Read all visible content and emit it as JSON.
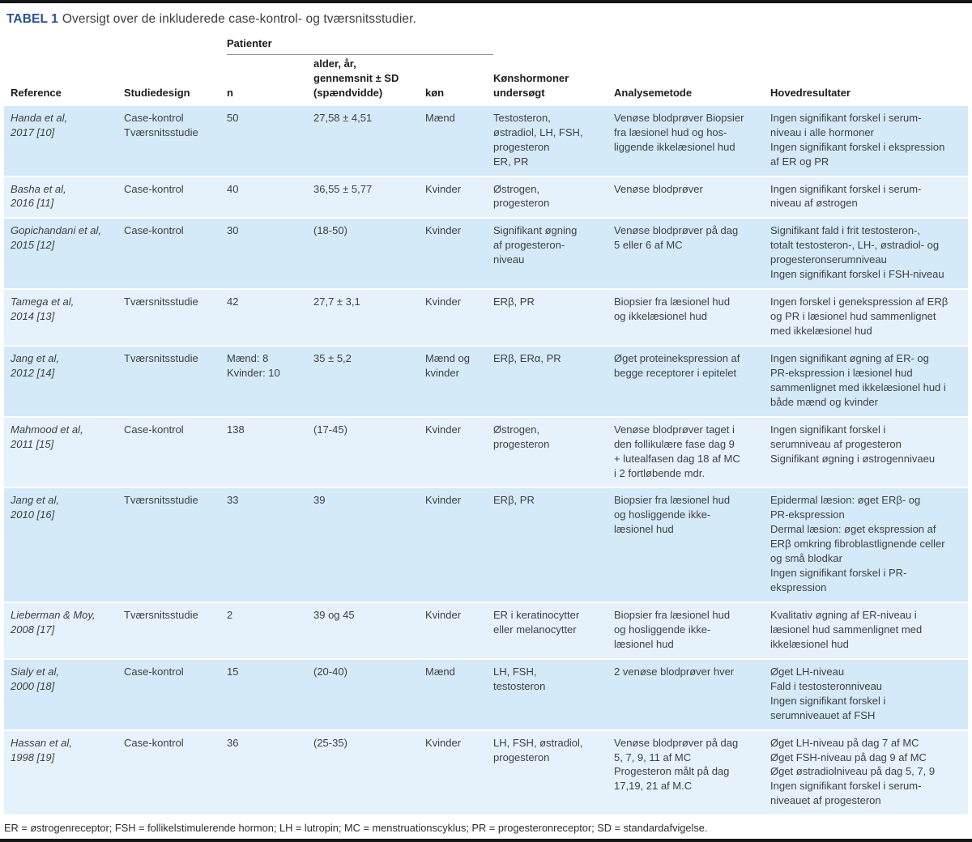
{
  "page": {
    "title_label": "TABEL 1",
    "title_text": "Oversigt over de inkluderede case-kontrol- og tværsnitsstudier.",
    "footnote": "ER = østrogenreceptor; FSH = follikelstimulerende hormon; LH = lutropin; MC = menstruationscyklus; PR = progesteronreceptor; SD = standardafvigelse.",
    "colors": {
      "accent_blue": "#24519b",
      "row_band_dark": "#d5eaf8",
      "row_band_light": "#e5f2fb",
      "rule_black": "#161616"
    }
  },
  "table": {
    "group_header": "Patienter",
    "columns": {
      "reference": "Reference",
      "design": "Studiedesign",
      "n": "n",
      "age": "alder, år,\ngennemsnit ± SD\n(spændvidde)",
      "sex": "køn",
      "hormones": "Kønshormoner\nundersøgt",
      "method": "Analysemetode",
      "results": "Hovedresultater"
    },
    "rows": [
      {
        "reference": "Handa et al,\n2017 [10]",
        "design": "Case-kontrol\nTværsnitsstudie",
        "n": "50",
        "age": "27,58 ± 4,51",
        "sex": "Mænd",
        "hormones": "Testosteron,\nøstradiol, LH, FSH,\nprogesteron\nER, PR",
        "method": "Venøse blodprøver Biopsier\nfra læsionel hud og hos-\nliggende ikkelæsionel hud",
        "results": "Ingen signifikant forskel i serum-\nniveau i alle hormoner\nIngen signifikant forskel i ekspression\naf ER og PR"
      },
      {
        "reference": "Basha et al,\n2016 [11]",
        "design": "Case-kontrol",
        "n": "40",
        "age": "36,55 ± 5,77",
        "sex": "Kvinder",
        "hormones": "Østrogen,\nprogesteron",
        "method": "Venøse blodprøver",
        "results": "Ingen signifikant forskel i serum-\nniveau af østrogen"
      },
      {
        "reference": "Gopichandani et al,\n2015 [12]",
        "design": "Case-kontrol",
        "n": "30",
        "age": "(18-50)",
        "sex": "Kvinder",
        "hormones": "Signifikant øgning\naf progesteron-\nniveau",
        "method": "Venøse blodprøver på dag\n5 eller 6 af MC",
        "results": "Signifikant fald i frit testosteron-,\ntotalt testosteron-, LH-, østradiol- og\nprogesteronserumniveau\nIngen signifikant forskel i FSH-niveau"
      },
      {
        "reference": "Tamega et al,\n2014 [13]",
        "design": "Tværsnitsstudie",
        "n": "42",
        "age": "27,7 ± 3,1",
        "sex": "Kvinder",
        "hormones": "ERβ, PR",
        "method": "Biopsier fra læsionel hud\nog ikkelæsionel hud",
        "results": "Ingen forskel i genekspression af ERβ\nog PR i læsionel hud sammenlignet\nmed ikkelæsionel hud"
      },
      {
        "reference": "Jang et al,\n2012 [14]",
        "design": "Tværsnitsstudie",
        "n": "Mænd: 8\nKvinder: 10",
        "age": "35 ± 5,2",
        "sex": "Mænd og\nkvinder",
        "hormones": "ERβ, ERα, PR",
        "method": "Øget proteinekspression af\nbegge receptorer i epitelet",
        "results": "Ingen signifikant øgning af ER- og\nPR-ekspression i læsionel hud\nsammenlignet med ikkelæsionel hud i\nbåde mænd og kvinder"
      },
      {
        "reference": "Mahmood et al,\n2011 [15]",
        "design": "Case-kontrol",
        "n": "138",
        "age": "(17-45)",
        "sex": "Kvinder",
        "hormones": "Østrogen,\nprogesteron",
        "method": "Venøse blodprøver taget i\nden follikulære fase dag 9\n+ lutealfasen dag 18 af MC\ni 2 fortløbende mdr.",
        "results": "Ingen signifikant forskel i\nserumniveau af progesteron\nSignifikant øgning i østrogennivaeu"
      },
      {
        "reference": "Jang et al,\n2010 [16]",
        "design": "Tværsnitsstudie",
        "n": "33",
        "age": "39",
        "sex": "Kvinder",
        "hormones": "ERβ, PR",
        "method": "Biopsier fra læsionel hud\nog hosliggende ikke-\nlæsionel hud",
        "results": "Epidermal læsion: øget ERβ- og\nPR-ekspression\nDermal læsion: øget ekspression af\nERβ omkring fibroblastlignende celler\nog små blodkar\nIngen signifikant forskel i PR-\nekspression"
      },
      {
        "reference": "Lieberman & Moy,\n2008 [17]",
        "design": "Tværsnitsstudie",
        "n": "2",
        "age": "39 og 45",
        "sex": "Kvinder",
        "hormones": "ER i keratinocytter\neller melanocytter",
        "method": "Biopsier fra læsionel hud\nog hosliggende ikke-\nlæsionel hud",
        "results": "Kvalitativ øgning af ER-niveau i\nlæsionel hud sammenlignet med\nikkelæsionel hud"
      },
      {
        "reference": "Sialy et al,\n2000 [18]",
        "design": "Case-kontrol",
        "n": "15",
        "age": "(20-40)",
        "sex": "Mænd",
        "hormones": "LH, FSH,\ntestosteron",
        "method": "2 venøse blodprøver hver",
        "results": "Øget LH-niveau\nFald i testosteronniveau\nIngen signifikant forskel i\nserumniveauet af FSH"
      },
      {
        "reference": "Hassan et al,\n1998 [19]",
        "design": "Case-kontrol",
        "n": "36",
        "age": "(25-35)",
        "sex": "Kvinder",
        "hormones": "LH, FSH, østradiol,\nprogesteron",
        "method": "Venøse blodprøver på dag\n5, 7, 9, 11 af MC\nProgesteron målt på dag\n17,19, 21 af M.C",
        "results": "Øget LH-niveau på dag 7 af MC\nØget FSH-niveau på dag 9 af MC\nØget østradiolniveau på dag 5, 7, 9\nIngen signifikant forskel i serum-\nniveauet af progesteron"
      }
    ]
  }
}
